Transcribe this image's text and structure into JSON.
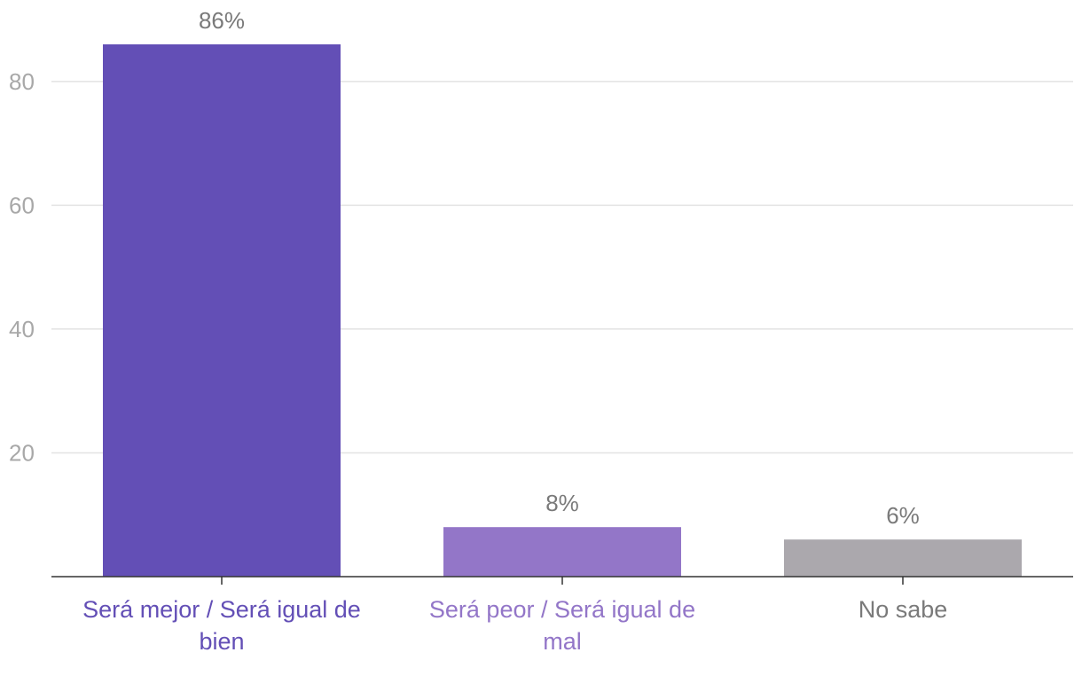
{
  "chart_data": {
    "type": "bar",
    "title": "",
    "xlabel": "",
    "ylabel": "",
    "ylim": [
      0,
      88
    ],
    "yticks": [
      20,
      40,
      60,
      80
    ],
    "grid": true,
    "categories": [
      {
        "lines": [
          "Será mejor / Será igual de",
          "bien"
        ],
        "color": "#634fb6",
        "label_color": "#634fb6"
      },
      {
        "lines": [
          "Será peor / Será igual de",
          "mal"
        ],
        "color": "#9376c8",
        "label_color": "#9376c8"
      },
      {
        "lines": [
          "No sabe"
        ],
        "color": "#aba8ad",
        "label_color": "#7a7a7a"
      }
    ],
    "values": [
      86,
      8,
      6
    ],
    "data_labels": [
      "86%",
      "8%",
      "6%"
    ]
  }
}
